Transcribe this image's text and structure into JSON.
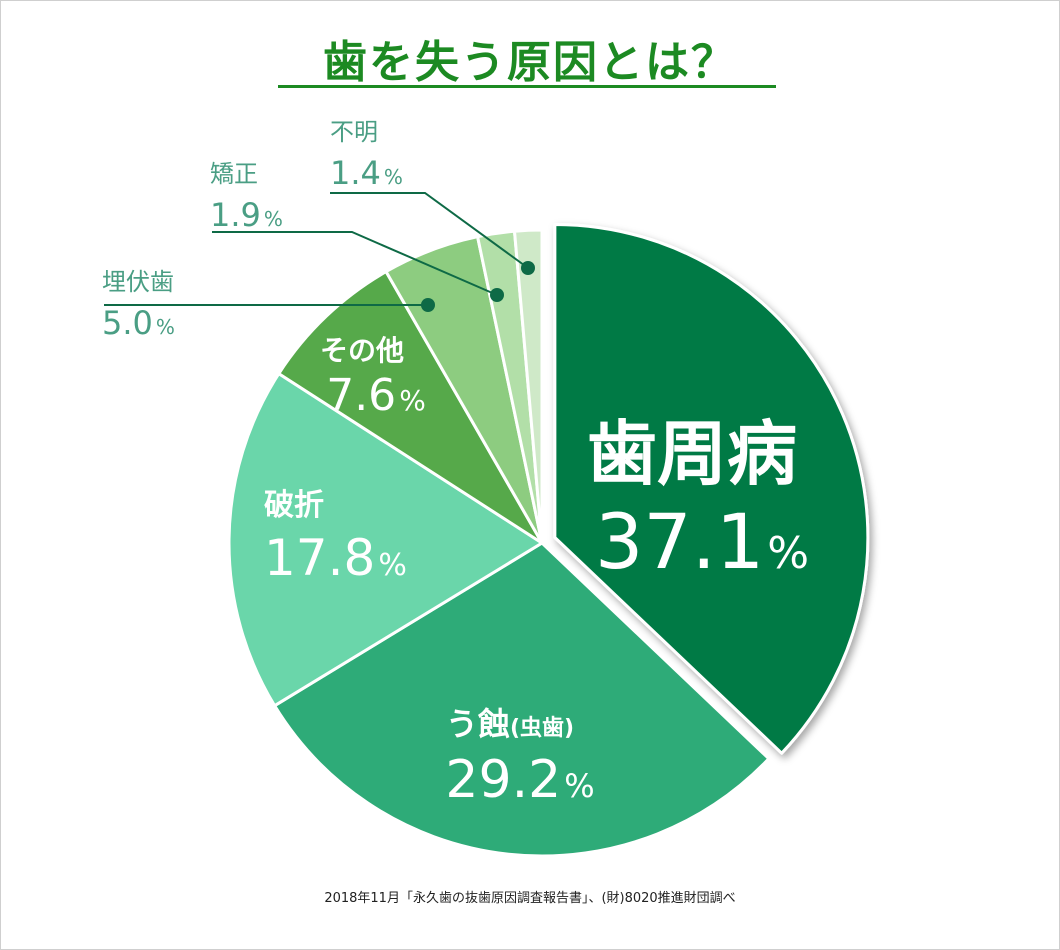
{
  "title": "歯を失う原因とは？",
  "source": "2018年11月「永久歯の抜歯原因調査報告書」、(財)8020推進財団調べ",
  "colors": {
    "title": "#1c8a22",
    "outside_label": "#4a9e84"
  },
  "chart_data": {
    "type": "pie",
    "start": "12 o'clock, clockwise",
    "exploded_slice": "歯周病",
    "slices": [
      {
        "label": "歯周病",
        "value": 37.1,
        "pct": "37.1",
        "color": "#007a45"
      },
      {
        "label": "う蝕",
        "sublabel": "(虫歯)",
        "value": 29.2,
        "pct": "29.2",
        "color": "#2eab78"
      },
      {
        "label": "破折",
        "value": 17.8,
        "pct": "17.8",
        "color": "#6ad6aa"
      },
      {
        "label": "その他",
        "value": 7.6,
        "pct": "7.6",
        "color": "#56a94a"
      },
      {
        "label": "埋伏歯",
        "value": 5.0,
        "pct": "5.0",
        "color": "#8dcc80"
      },
      {
        "label": "矯正",
        "value": 1.9,
        "pct": "1.9",
        "color": "#b2dfa8"
      },
      {
        "label": "不明",
        "value": 1.4,
        "pct": "1.4",
        "color": "#cfe9c8"
      }
    ],
    "unit": "%"
  }
}
